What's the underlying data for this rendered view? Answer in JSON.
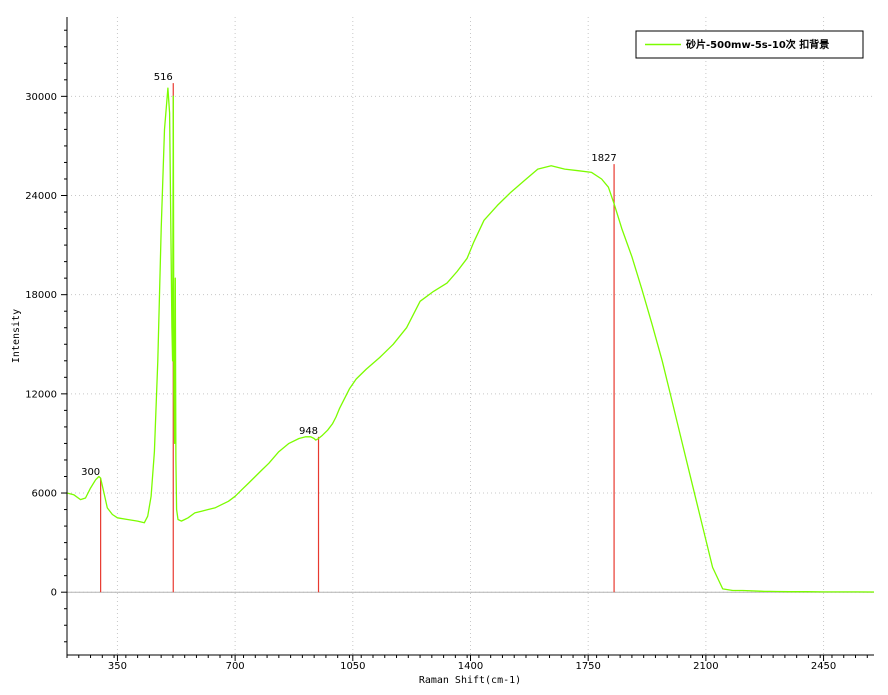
{
  "chart_data": {
    "type": "line",
    "xlabel": "Raman Shift(cm-1)",
    "ylabel": "Intensity",
    "xlim": [
      200,
      2600
    ],
    "ylim": [
      -3800,
      34800
    ],
    "x_ticks": [
      350,
      700,
      1050,
      1400,
      1750,
      2100,
      2450
    ],
    "y_ticks": [
      0,
      6000,
      12000,
      18000,
      24000,
      30000
    ],
    "grid": true,
    "legend_position": "top-right",
    "series": [
      {
        "name": "砂片-500mw-5s-10次 扣背景",
        "color": "#7cfc00",
        "x": [
          200,
          220,
          240,
          255,
          270,
          285,
          295,
          300,
          310,
          320,
          335,
          350,
          380,
          410,
          430,
          440,
          450,
          460,
          470,
          480,
          490,
          500,
          505,
          510,
          512,
          514,
          516,
          518,
          520,
          522,
          524,
          526,
          530,
          540,
          550,
          560,
          580,
          600,
          620,
          640,
          660,
          680,
          700,
          720,
          740,
          760,
          780,
          800,
          830,
          860,
          890,
          910,
          925,
          935,
          940,
          948,
          960,
          975,
          990,
          1000,
          1010,
          1025,
          1040,
          1060,
          1090,
          1130,
          1170,
          1210,
          1250,
          1290,
          1330,
          1360,
          1390,
          1410,
          1440,
          1480,
          1520,
          1560,
          1600,
          1640,
          1680,
          1720,
          1760,
          1790,
          1810,
          1827,
          1850,
          1880,
          1910,
          1940,
          1970,
          2000,
          2030,
          2060,
          2090,
          2120,
          2150,
          2180,
          2210,
          2240,
          2260,
          2275,
          2290,
          2310,
          2350,
          2400,
          2450,
          2500,
          2550,
          2600
        ],
        "y": [
          6000,
          5900,
          5600,
          5700,
          6300,
          6800,
          7000,
          6900,
          6000,
          5100,
          4700,
          4500,
          4400,
          4300,
          4200,
          4600,
          5800,
          8500,
          14000,
          22000,
          28000,
          30500,
          29000,
          20000,
          16000,
          14000,
          30000,
          12000,
          9000,
          19000,
          8000,
          5000,
          4400,
          4300,
          4400,
          4500,
          4800,
          4900,
          5000,
          5100,
          5300,
          5500,
          5800,
          6200,
          6600,
          7000,
          7400,
          7800,
          8500,
          9000,
          9300,
          9400,
          9400,
          9300,
          9200,
          9300,
          9500,
          9800,
          10200,
          10600,
          11100,
          11700,
          12300,
          12900,
          13500,
          14200,
          15000,
          16000,
          17600,
          18200,
          18700,
          19400,
          20200,
          21200,
          22500,
          23400,
          24200,
          24900,
          25600,
          25800,
          25600,
          25500,
          25400,
          25000,
          24500,
          23500,
          22000,
          20300,
          18300,
          16200,
          14000,
          11500,
          9000,
          6500,
          4000,
          1500,
          200,
          100,
          100,
          80,
          60,
          50,
          50,
          40,
          30,
          30,
          20,
          20,
          20,
          10
        ]
      }
    ],
    "peaks": [
      {
        "label": "300",
        "x": 300,
        "y": 6900
      },
      {
        "label": "516",
        "x": 516,
        "y": 30800
      },
      {
        "label": "948",
        "x": 948,
        "y": 9400
      },
      {
        "label": "1827",
        "x": 1827,
        "y": 25900
      }
    ]
  }
}
